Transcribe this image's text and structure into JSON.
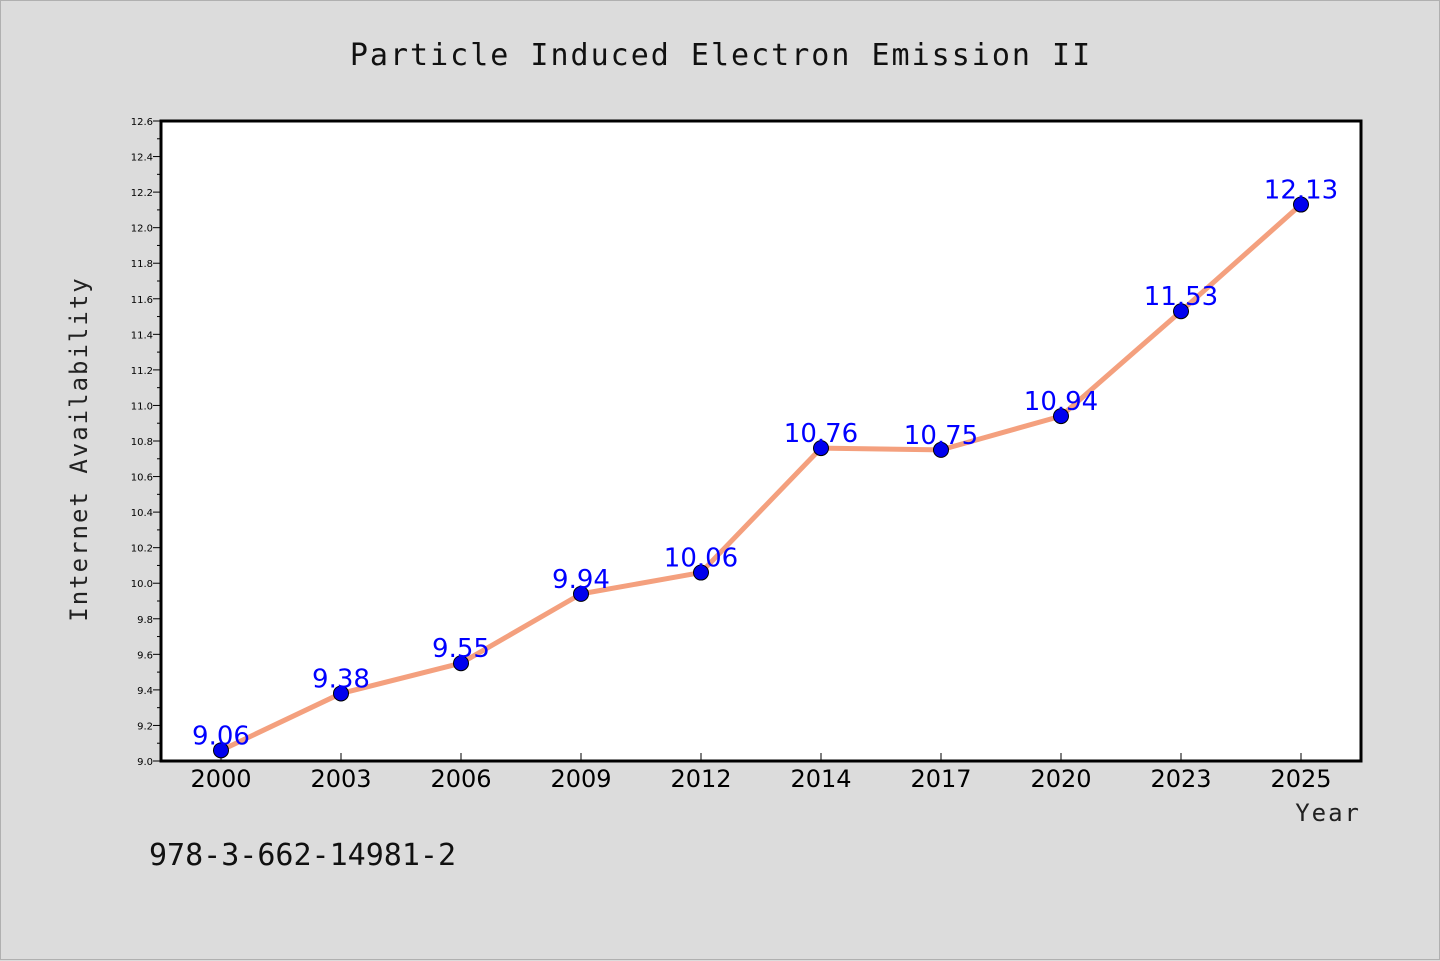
{
  "chart_data": {
    "type": "line",
    "title": "Particle Induced Electron Emission II",
    "xlabel": "Year",
    "ylabel": "Internet Availability",
    "categories": [
      "2000",
      "2003",
      "2006",
      "2009",
      "2012",
      "2014",
      "2017",
      "2020",
      "2023",
      "2025"
    ],
    "series": [
      {
        "values": [
          9.06,
          9.38,
          9.55,
          9.94,
          10.06,
          10.76,
          10.75,
          10.94,
          11.53,
          12.13
        ],
        "labels": [
          "9.06",
          "9.38",
          "9.55",
          "9.94",
          "10.06",
          "10.76",
          "10.75",
          "10.94",
          "11.53",
          "12.13"
        ],
        "line_color": "#f4a07e",
        "marker_color": "#0000ee"
      }
    ],
    "ylim": [
      9.0,
      12.6
    ],
    "yticks": [
      "9.0",
      "9.2",
      "9.4",
      "9.6",
      "9.8",
      "10.0",
      "10.2",
      "10.4",
      "10.6",
      "10.8",
      "11.0",
      "11.2",
      "11.4",
      "11.6",
      "11.8",
      "12.0",
      "12.2",
      "12.4",
      "12.6"
    ],
    "grid": false,
    "label_color": "#0000ff"
  },
  "footer": {
    "isbn": "978-3-662-14981-2"
  }
}
